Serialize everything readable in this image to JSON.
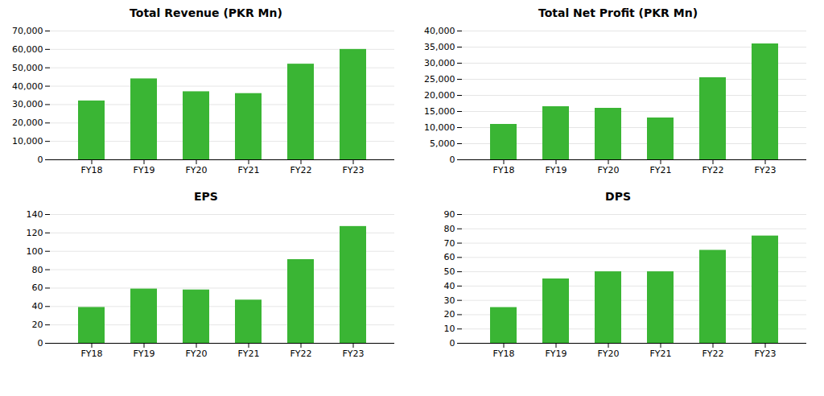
{
  "chart_data": [
    {
      "type": "bar",
      "title": "Total Revenue (PKR Mn)",
      "categories": [
        "FY18",
        "FY19",
        "FY20",
        "FY21",
        "FY22",
        "FY23"
      ],
      "values": [
        32000,
        44000,
        37000,
        36000,
        52000,
        60000
      ],
      "color": "#3ab534",
      "ylim": [
        0,
        70000
      ],
      "yticks": [
        0,
        {
          "value": 10000,
          "label": "10,000"
        },
        {
          "value": 20000,
          "label": "20,000"
        },
        {
          "value": 30000,
          "label": "30,000"
        },
        {
          "value": 40000,
          "label": "40,000"
        },
        {
          "value": 50000,
          "label": "50,000"
        },
        {
          "value": 60000,
          "label": "60,000"
        },
        {
          "value": 70000,
          "label": "70,000"
        }
      ],
      "grid": true
    },
    {
      "type": "bar",
      "title": "Total Net Profit (PKR Mn)",
      "categories": [
        "FY18",
        "FY19",
        "FY20",
        "FY21",
        "FY22",
        "FY23"
      ],
      "values": [
        11000,
        16500,
        16000,
        13000,
        25500,
        36000
      ],
      "color": "#3ab534",
      "ylim": [
        0,
        40000
      ],
      "yticks": [
        0,
        {
          "value": 5000,
          "label": "5,000"
        },
        {
          "value": 10000,
          "label": "10,000"
        },
        {
          "value": 15000,
          "label": "15,000"
        },
        {
          "value": 20000,
          "label": "20,000"
        },
        {
          "value": 25000,
          "label": "25,000"
        },
        {
          "value": 30000,
          "label": "30,000"
        },
        {
          "value": 35000,
          "label": "35,000"
        },
        {
          "value": 40000,
          "label": "40,000"
        }
      ],
      "grid": true
    },
    {
      "type": "bar",
      "title": "EPS",
      "categories": [
        "FY18",
        "FY19",
        "FY20",
        "FY21",
        "FY22",
        "FY23"
      ],
      "values": [
        39,
        59,
        58,
        47,
        91,
        127
      ],
      "color": "#3ab534",
      "ylim": [
        0,
        140
      ],
      "yticks": [
        0,
        20,
        40,
        60,
        80,
        100,
        120,
        140
      ],
      "grid": true
    },
    {
      "type": "bar",
      "title": "DPS",
      "categories": [
        "FY18",
        "FY19",
        "FY20",
        "FY21",
        "FY22",
        "FY23"
      ],
      "values": [
        25,
        45,
        50,
        50,
        65,
        75
      ],
      "color": "#3ab534",
      "ylim": [
        0,
        90
      ],
      "yticks": [
        0,
        10,
        20,
        30,
        40,
        50,
        60,
        70,
        80,
        90
      ],
      "grid": true
    }
  ]
}
